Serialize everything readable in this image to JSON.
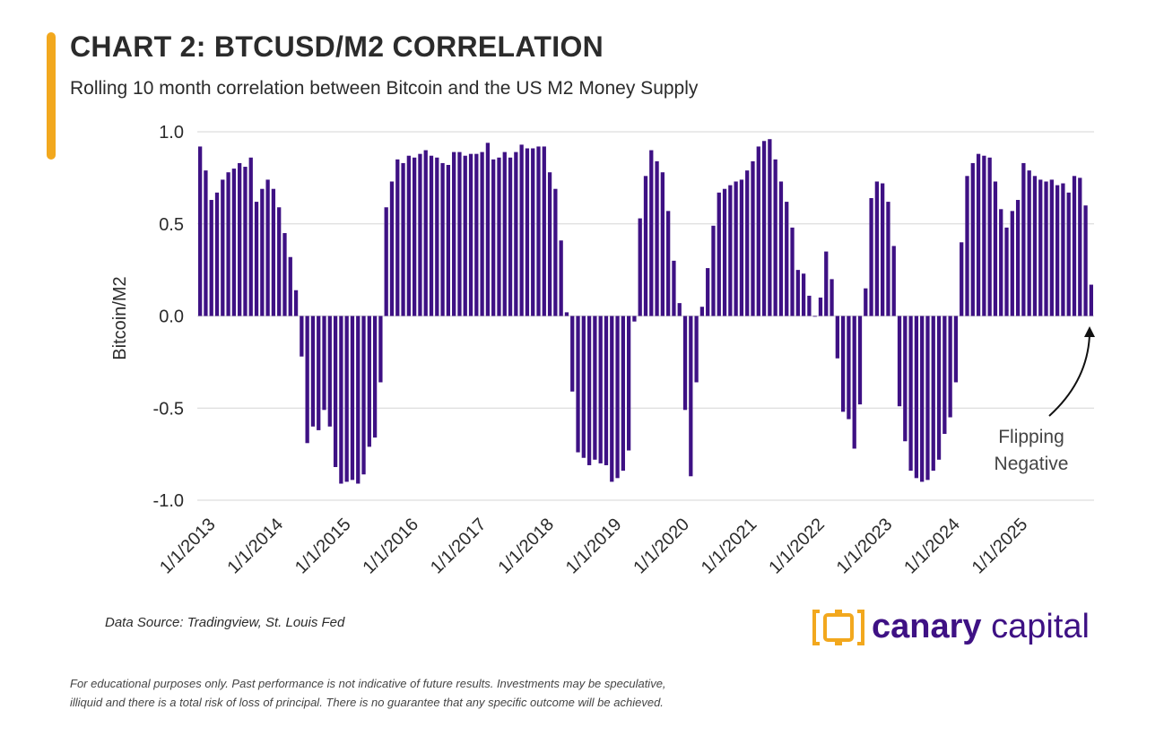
{
  "header": {
    "title": "CHART 2: BTCUSD/M2 CORRELATION",
    "subtitle": "Rolling 10 month correlation between Bitcoin and the US M2 Money Supply"
  },
  "chart_data": {
    "type": "bar",
    "title": "CHART 2: BTCUSD/M2 CORRELATION",
    "subtitle": "Rolling 10 month correlation between Bitcoin and the US M2 Money Supply",
    "ylabel": "Bitcoin/M2",
    "xlabel": "",
    "ylim": [
      -1.0,
      1.0
    ],
    "y_ticks": [
      "1.0",
      "0.5",
      "0.0",
      "-0.5",
      "-1.0"
    ],
    "y_tick_values": [
      1.0,
      0.5,
      0.0,
      -0.5,
      -1.0
    ],
    "x_ticks": [
      "1/1/2013",
      "1/1/2014",
      "1/1/2015",
      "1/1/2016",
      "1/1/2017",
      "1/1/2018",
      "1/1/2019",
      "1/1/2020",
      "1/1/2021",
      "1/1/2022",
      "1/1/2023",
      "1/1/2024",
      "1/1/2025"
    ],
    "start": "1/1/2013",
    "frequency": "monthly",
    "grid": true,
    "bar_color": "#3E1184",
    "series": [
      {
        "name": "Bitcoin/M2 correlation",
        "values": [
          0.92,
          0.79,
          0.63,
          0.67,
          0.74,
          0.78,
          0.8,
          0.83,
          0.81,
          0.86,
          0.62,
          0.69,
          0.74,
          0.69,
          0.59,
          0.45,
          0.32,
          0.14,
          -0.22,
          -0.69,
          -0.6,
          -0.62,
          -0.51,
          -0.6,
          -0.82,
          -0.91,
          -0.9,
          -0.89,
          -0.91,
          -0.86,
          -0.71,
          -0.66,
          -0.36,
          0.59,
          0.73,
          0.85,
          0.83,
          0.87,
          0.86,
          0.88,
          0.9,
          0.87,
          0.86,
          0.83,
          0.82,
          0.89,
          0.89,
          0.87,
          0.88,
          0.88,
          0.89,
          0.94,
          0.85,
          0.86,
          0.89,
          0.86,
          0.89,
          0.93,
          0.91,
          0.91,
          0.92,
          0.92,
          0.78,
          0.69,
          0.41,
          0.02,
          -0.41,
          -0.74,
          -0.77,
          -0.81,
          -0.78,
          -0.8,
          -0.81,
          -0.9,
          -0.88,
          -0.84,
          -0.73,
          -0.03,
          0.53,
          0.76,
          0.9,
          0.84,
          0.78,
          0.57,
          0.3,
          0.07,
          -0.51,
          -0.87,
          -0.36,
          0.05,
          0.26,
          0.49,
          0.67,
          0.69,
          0.71,
          0.73,
          0.74,
          0.79,
          0.84,
          0.92,
          0.95,
          0.96,
          0.85,
          0.73,
          0.62,
          0.48,
          0.25,
          0.23,
          0.11,
          0.0,
          0.1,
          0.35,
          0.2,
          -0.23,
          -0.52,
          -0.56,
          -0.72,
          -0.48,
          0.15,
          0.64,
          0.73,
          0.72,
          0.62,
          0.38,
          -0.49,
          -0.68,
          -0.84,
          -0.88,
          -0.9,
          -0.89,
          -0.84,
          -0.78,
          -0.64,
          -0.55,
          -0.36,
          0.4,
          0.76,
          0.83,
          0.88,
          0.87,
          0.86,
          0.73,
          0.58,
          0.48,
          0.57,
          0.63,
          0.83,
          0.79,
          0.76,
          0.74,
          0.73,
          0.74,
          0.71,
          0.72,
          0.67,
          0.76,
          0.75,
          0.6,
          0.17
        ]
      }
    ],
    "annotation": {
      "line1": "Flipping",
      "line2": "Negative",
      "points_to": "last bar"
    }
  },
  "source": "Data Source: Tradingview, St. Louis Fed",
  "logo": {
    "name_bold": "canary",
    "name_light": "capital",
    "accent_color": "#F2A81E",
    "brand_color": "#3E1184"
  },
  "disclaimer": {
    "line1": "For educational purposes only. Past performance is not indicative of future results. Investments may be speculative,",
    "line2": "illiquid and there is a total risk of loss of principal. There is no guarantee that any specific outcome will be achieved."
  }
}
